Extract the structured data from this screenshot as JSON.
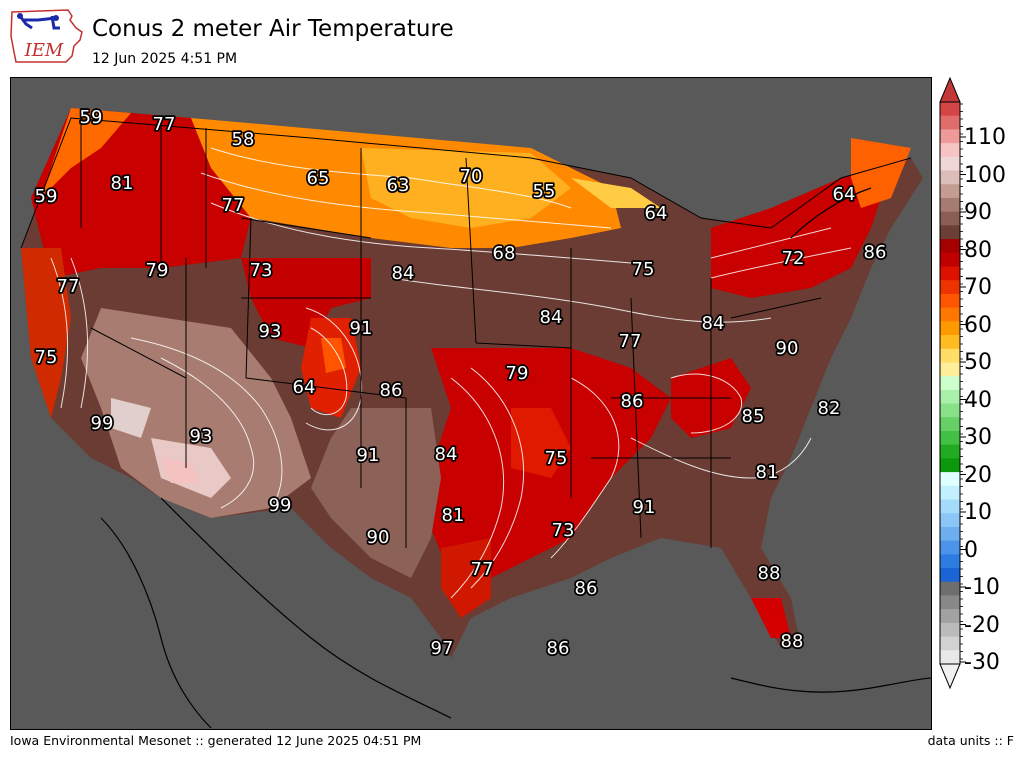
{
  "header": {
    "logo_text": "IEM",
    "title": "Conus 2 meter Air Temperature",
    "subtitle": "12 Jun 2025 4:51 PM"
  },
  "footer": {
    "left": "Iowa Environmental Mesonet :: generated 12 June 2025 04:51 PM",
    "right": "data units :: F"
  },
  "map": {
    "background_color": "#595959",
    "labels": [
      "59",
      "77",
      "58",
      "81",
      "65",
      "63",
      "70",
      "55",
      "59",
      "77",
      "64",
      "64",
      "79",
      "73",
      "84",
      "68",
      "72",
      "86",
      "77",
      "93",
      "91",
      "84",
      "75",
      "84",
      "75",
      "64",
      "86",
      "79",
      "77",
      "90",
      "99",
      "93",
      "91",
      "84",
      "86",
      "85",
      "82",
      "75",
      "81",
      "81",
      "91",
      "99",
      "90",
      "73",
      "77",
      "88",
      "86",
      "97",
      "86",
      "88"
    ]
  },
  "colorbar": {
    "tick_labels": [
      "110",
      "100",
      "90",
      "80",
      "70",
      "60",
      "50",
      "40",
      "30",
      "20",
      "10",
      "0",
      "-10",
      "-20",
      "-30"
    ],
    "colors_top_to_bottom": [
      "#d64545",
      "#e06c6c",
      "#ee9a9a",
      "#f7c4c4",
      "#efd7d7",
      "#dcbdb7",
      "#c49c91",
      "#a67c70",
      "#8a5e53",
      "#6b3f36",
      "#a50000",
      "#c00000",
      "#dd1100",
      "#ee3300",
      "#ff5500",
      "#ff7700",
      "#ff9900",
      "#ffbb22",
      "#ffdd66",
      "#ffee99",
      "#ccffcc",
      "#aaf0aa",
      "#88e088",
      "#66d066",
      "#44c044",
      "#22aa22",
      "#0b990b",
      "#e0ffff",
      "#c2f0ff",
      "#a6dcfb",
      "#8cc6f7",
      "#6daef0",
      "#4b94ea",
      "#2d7ce2",
      "#1a64d6",
      "#6e6e6e",
      "#888888",
      "#a2a2a2",
      "#bbbbbb",
      "#d2d2d2",
      "#e8e8e8"
    ]
  }
}
